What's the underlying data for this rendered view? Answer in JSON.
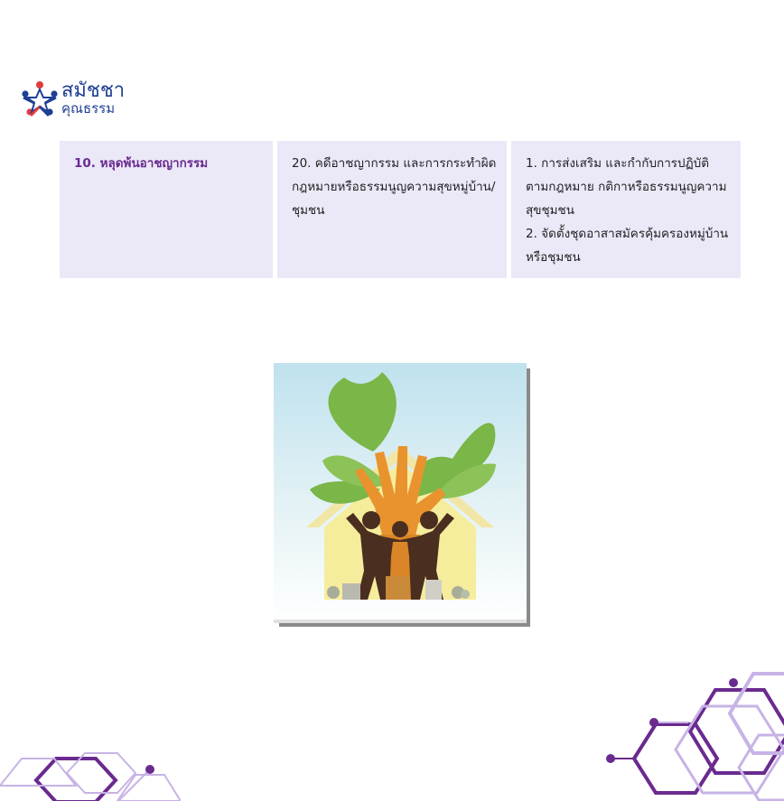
{
  "logo": {
    "line1": "สมัชชา",
    "line2": "คุณธรรม"
  },
  "table": {
    "col1": "10. หลุดพ้นอาชญากรรม",
    "col2": "20. คดีอาชญากรรม และการกระทำผิดกฎหมายหรือธรรมนูญความสุขหมู่บ้าน/ชุมชน",
    "col3": [
      "1. การส่งเสริม และกำกับการปฏิบัติตามกฎหมาย กติกาหรือธรรมนูญความสุขชุมชน",
      "2. จัดตั้งชุดอาสาสมัครคุ้มครองหมู่บ้านหรือชุมชน"
    ]
  },
  "colors": {
    "accent_purple": "#6a2a8f",
    "cell_bg": "#ebe8f8",
    "logo_blue": "#1f3f94",
    "logo_red": "#e23b3b",
    "leaf_green": "#7ab648",
    "hand_orange": "#e8932e",
    "family_brown": "#4a2e1f"
  }
}
